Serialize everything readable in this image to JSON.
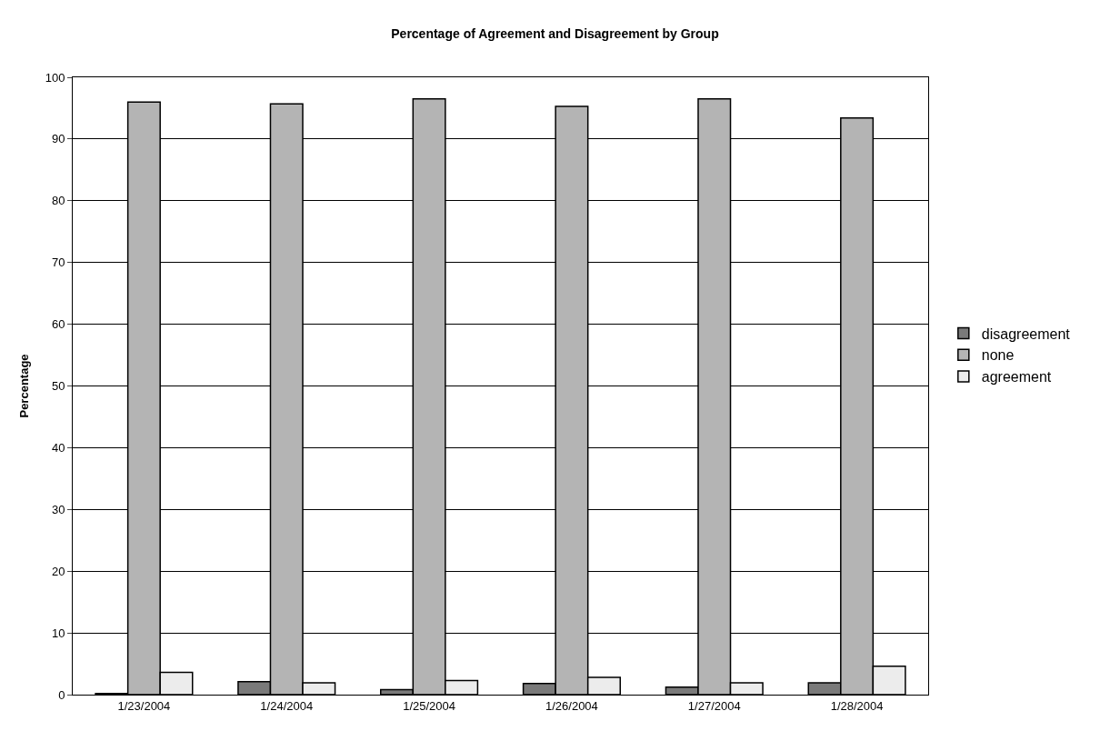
{
  "chart_data": {
    "type": "bar",
    "title": "Percentage of Agreement and Disagreement by Group",
    "ylabel": "Percentage",
    "categories": [
      "1/23/2004",
      "1/24/2004",
      "1/25/2004",
      "1/26/2004",
      "1/27/2004",
      "1/28/2004"
    ],
    "series": [
      {
        "name": "disagreement",
        "color": "#7a7a7a",
        "values": [
          0.2,
          2.1,
          0.8,
          1.8,
          1.2,
          1.9
        ]
      },
      {
        "name": "none",
        "color": "#b4b4b4",
        "values": [
          96.0,
          95.7,
          96.5,
          95.3,
          96.5,
          93.4
        ]
      },
      {
        "name": "agreement",
        "color": "#ececec",
        "values": [
          3.6,
          1.9,
          2.3,
          2.8,
          1.9,
          4.6
        ]
      }
    ],
    "ylim": [
      0,
      100
    ],
    "yticks": [
      0,
      10,
      20,
      30,
      40,
      50,
      60,
      70,
      80,
      90,
      100
    ],
    "grid": "y",
    "legend": "right"
  }
}
